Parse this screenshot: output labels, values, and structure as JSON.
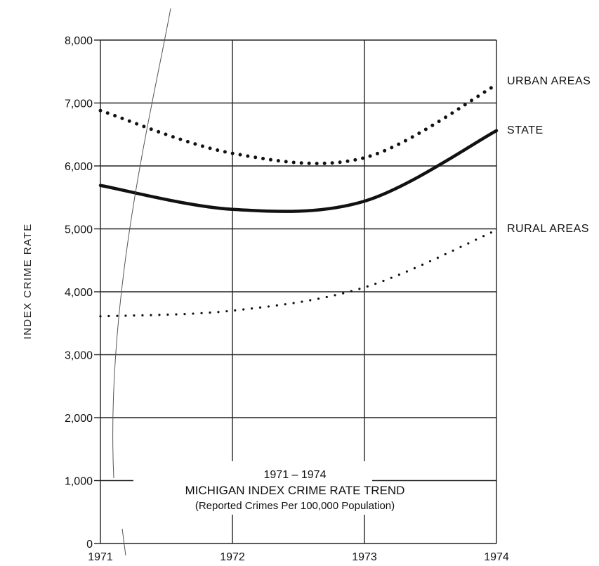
{
  "chart_data": {
    "type": "line",
    "title": "MICHIGAN INDEX CRIME RATE TREND",
    "title_years": "1971 – 1974",
    "subtitle": "(Reported Crimes Per 100,000 Population)",
    "ylabel": "INDEX CRIME RATE",
    "xlabel": "",
    "x": [
      1971,
      1972,
      1973,
      1974
    ],
    "x_tick_labels": [
      "1971",
      "1972",
      "1973",
      "1974"
    ],
    "y_tick_labels": [
      "0",
      "1,000",
      "2,000",
      "3,000",
      "4,000",
      "5,000",
      "6,000",
      "7,000",
      "8,000"
    ],
    "ylim": [
      0,
      8000
    ],
    "grid": true,
    "series": [
      {
        "name": "URBAN AREAS",
        "style": "heavy-dotted",
        "color": "#111111",
        "values": [
          6880,
          6200,
          6130,
          7290
        ]
      },
      {
        "name": "STATE",
        "style": "solid",
        "color": "#111111",
        "values": [
          5690,
          5310,
          5440,
          6560
        ]
      },
      {
        "name": "RURAL AREAS",
        "style": "light-dotted",
        "color": "#111111",
        "values": [
          3610,
          3700,
          4070,
          4980
        ]
      }
    ]
  }
}
